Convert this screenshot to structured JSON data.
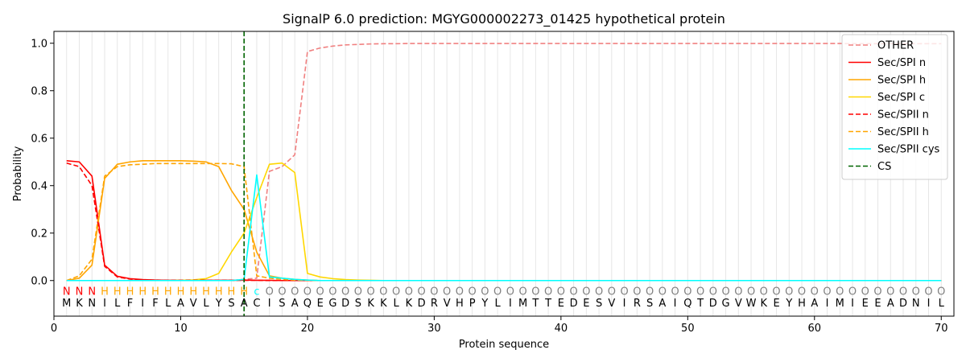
{
  "chart_data": {
    "type": "line",
    "title": "SignalP 6.0 prediction: MGYG000002273_01425 hypothetical protein",
    "xlabel": "Protein sequence",
    "ylabel": "Probability",
    "xlim": [
      0,
      71
    ],
    "ylim": [
      -0.15,
      1.05
    ],
    "xticks": [
      0,
      10,
      20,
      30,
      40,
      50,
      60,
      70
    ],
    "yticks": [
      0.0,
      0.2,
      0.4,
      0.6,
      0.8,
      1.0
    ],
    "ytick_labels": [
      "0.0",
      "0.2",
      "0.4",
      "0.6",
      "0.8",
      "1.0"
    ],
    "grid": "vertical lines at each residue",
    "legend_position": "top-right",
    "sequence": [
      "M",
      "K",
      "N",
      "I",
      "L",
      "F",
      "I",
      "F",
      "L",
      "A",
      "V",
      "L",
      "Y",
      "S",
      "A",
      "C",
      "I",
      "S",
      "A",
      "Q",
      "E",
      "G",
      "D",
      "S",
      "K",
      "K",
      "L",
      "K",
      "D",
      "R",
      "V",
      "H",
      "P",
      "Y",
      "L",
      "I",
      "M",
      "T",
      "T",
      "E",
      "D",
      "E",
      "S",
      "V",
      "I",
      "R",
      "S",
      "A",
      "I",
      "Q",
      "T",
      "D",
      "G",
      "V",
      "W",
      "K",
      "E",
      "Y",
      "H",
      "A",
      "I",
      "M",
      "I",
      "E",
      "E",
      "A",
      "D",
      "N",
      "I",
      "L"
    ],
    "annotation": [
      "N",
      "N",
      "N",
      "H",
      "H",
      "H",
      "H",
      "H",
      "H",
      "H",
      "H",
      "H",
      "H",
      "H",
      "H",
      "c",
      "O",
      "O",
      "O",
      "O",
      "O",
      "O",
      "O",
      "O",
      "O",
      "O",
      "O",
      "O",
      "O",
      "O",
      "O",
      "O",
      "O",
      "O",
      "O",
      "O",
      "O",
      "O",
      "O",
      "O",
      "O",
      "O",
      "O",
      "O",
      "O",
      "O",
      "O",
      "O",
      "O",
      "O",
      "O",
      "O",
      "O",
      "O",
      "O",
      "O",
      "O",
      "O",
      "O",
      "O",
      "O",
      "O",
      "O",
      "O",
      "O",
      "O",
      "O",
      "O",
      "O",
      "O"
    ],
    "annotation_colors": {
      "N": "#ff0000",
      "H": "#ffa500",
      "c": "#00ffff",
      "O": "#808080"
    },
    "cs_position": 15,
    "series": [
      {
        "name": "OTHER",
        "color": "#f08080",
        "dash": true,
        "values": [
          0.0,
          0.0,
          0.0,
          0.0,
          0.0,
          0.0,
          0.0,
          0.0,
          0.0,
          0.0,
          0.0,
          0.0,
          0.0,
          0.0,
          0.005,
          0.01,
          0.46,
          0.48,
          0.53,
          0.965,
          0.98,
          0.988,
          0.993,
          0.995,
          0.997,
          0.998,
          0.998,
          0.999,
          0.999,
          0.999,
          0.999,
          0.999,
          0.999,
          0.999,
          0.999,
          0.999,
          0.999,
          0.999,
          0.999,
          0.999,
          0.999,
          0.999,
          0.999,
          0.999,
          0.999,
          0.999,
          0.999,
          0.999,
          0.999,
          0.999,
          0.999,
          0.999,
          0.999,
          0.999,
          0.999,
          0.999,
          0.999,
          0.999,
          0.999,
          0.999,
          0.999,
          0.999,
          0.998,
          0.998,
          0.998,
          0.998,
          0.998,
          0.998,
          0.998,
          0.998
        ]
      },
      {
        "name": "Sec/SPI n",
        "color": "#ff0000",
        "dash": false,
        "values": [
          0.505,
          0.5,
          0.44,
          0.065,
          0.018,
          0.008,
          0.004,
          0.002,
          0.001,
          0.001,
          0.001,
          0.001,
          0.001,
          0.001,
          0.002,
          0.001,
          0.001,
          0.0,
          0.0,
          0.0,
          0.0,
          0.0,
          0.0,
          0.0,
          0.0,
          0.0,
          0.0,
          0.0,
          0.0,
          0.0,
          0.0,
          0.0,
          0.0,
          0.0,
          0.0,
          0.0,
          0.0,
          0.0,
          0.0,
          0.0,
          0.0,
          0.0,
          0.0,
          0.0,
          0.0,
          0.0,
          0.0,
          0.0,
          0.0,
          0.0,
          0.0,
          0.0,
          0.0,
          0.0,
          0.0,
          0.0,
          0.0,
          0.0,
          0.0,
          0.0,
          0.0,
          0.0,
          0.0,
          0.0,
          0.0,
          0.0,
          0.0,
          0.0,
          0.0,
          0.0
        ]
      },
      {
        "name": "Sec/SPI h",
        "color": "#ffa500",
        "dash": false,
        "values": [
          0.0,
          0.01,
          0.065,
          0.43,
          0.49,
          0.5,
          0.505,
          0.505,
          0.505,
          0.505,
          0.503,
          0.5,
          0.48,
          0.38,
          0.3,
          0.12,
          0.02,
          0.01,
          0.005,
          0.002,
          0.0,
          0.0,
          0.0,
          0.0,
          0.0,
          0.0,
          0.0,
          0.0,
          0.0,
          0.0,
          0.0,
          0.0,
          0.0,
          0.0,
          0.0,
          0.0,
          0.0,
          0.0,
          0.0,
          0.0,
          0.0,
          0.0,
          0.0,
          0.0,
          0.0,
          0.0,
          0.0,
          0.0,
          0.0,
          0.0,
          0.0,
          0.0,
          0.0,
          0.0,
          0.0,
          0.0,
          0.0,
          0.0,
          0.0,
          0.0,
          0.0,
          0.0,
          0.0,
          0.0,
          0.0,
          0.0,
          0.0,
          0.0,
          0.0,
          0.0
        ]
      },
      {
        "name": "Sec/SPI c",
        "color": "#ffd700",
        "dash": false,
        "values": [
          0.0,
          0.0,
          0.0,
          0.0,
          0.0,
          0.0,
          0.0,
          0.0,
          0.0,
          0.001,
          0.003,
          0.008,
          0.03,
          0.12,
          0.2,
          0.35,
          0.49,
          0.495,
          0.455,
          0.03,
          0.015,
          0.008,
          0.004,
          0.002,
          0.001,
          0.0,
          0.0,
          0.0,
          0.0,
          0.0,
          0.0,
          0.0,
          0.0,
          0.0,
          0.0,
          0.0,
          0.0,
          0.0,
          0.0,
          0.0,
          0.0,
          0.0,
          0.0,
          0.0,
          0.0,
          0.0,
          0.0,
          0.0,
          0.0,
          0.0,
          0.0,
          0.0,
          0.0,
          0.0,
          0.0,
          0.0,
          0.0,
          0.0,
          0.0,
          0.0,
          0.0,
          0.0,
          0.0,
          0.0,
          0.0,
          0.0,
          0.0,
          0.0,
          0.0,
          0.0
        ]
      },
      {
        "name": "Sec/SPII n",
        "color": "#ff0000",
        "dash": true,
        "values": [
          0.495,
          0.48,
          0.4,
          0.06,
          0.015,
          0.006,
          0.003,
          0.002,
          0.001,
          0.001,
          0.001,
          0.001,
          0.001,
          0.001,
          0.001,
          0.001,
          0.0,
          0.0,
          0.0,
          0.0,
          0.0,
          0.0,
          0.0,
          0.0,
          0.0,
          0.0,
          0.0,
          0.0,
          0.0,
          0.0,
          0.0,
          0.0,
          0.0,
          0.0,
          0.0,
          0.0,
          0.0,
          0.0,
          0.0,
          0.0,
          0.0,
          0.0,
          0.0,
          0.0,
          0.0,
          0.0,
          0.0,
          0.0,
          0.0,
          0.0,
          0.0,
          0.0,
          0.0,
          0.0,
          0.0,
          0.0,
          0.0,
          0.0,
          0.0,
          0.0,
          0.0,
          0.0,
          0.0,
          0.0,
          0.0,
          0.0,
          0.0,
          0.0,
          0.0,
          0.0
        ]
      },
      {
        "name": "Sec/SPII h",
        "color": "#ffa500",
        "dash": true,
        "values": [
          0.0,
          0.02,
          0.09,
          0.44,
          0.48,
          0.488,
          0.49,
          0.493,
          0.493,
          0.493,
          0.493,
          0.493,
          0.493,
          0.492,
          0.48,
          0.02,
          0.01,
          0.005,
          0.002,
          0.001,
          0.0,
          0.0,
          0.0,
          0.0,
          0.0,
          0.0,
          0.0,
          0.0,
          0.0,
          0.0,
          0.0,
          0.0,
          0.0,
          0.0,
          0.0,
          0.0,
          0.0,
          0.0,
          0.0,
          0.0,
          0.0,
          0.0,
          0.0,
          0.0,
          0.0,
          0.0,
          0.0,
          0.0,
          0.0,
          0.0,
          0.0,
          0.0,
          0.0,
          0.0,
          0.0,
          0.0,
          0.0,
          0.0,
          0.0,
          0.0,
          0.0,
          0.0,
          0.0,
          0.0,
          0.0,
          0.0,
          0.0,
          0.0,
          0.0,
          0.0
        ]
      },
      {
        "name": "Sec/SPII cys",
        "color": "#00ffff",
        "dash": false,
        "values": [
          0.0,
          0.0,
          0.0,
          0.0,
          0.0,
          0.0,
          0.0,
          0.0,
          0.0,
          0.0,
          0.0,
          0.0,
          0.0,
          0.0,
          0.005,
          0.445,
          0.015,
          0.01,
          0.005,
          0.002,
          0.0,
          0.0,
          0.0,
          0.0,
          0.0,
          0.0,
          0.0,
          0.0,
          0.0,
          0.0,
          0.0,
          0.0,
          0.0,
          0.0,
          0.0,
          0.0,
          0.0,
          0.0,
          0.0,
          0.0,
          0.0,
          0.0,
          0.0,
          0.0,
          0.0,
          0.0,
          0.0,
          0.0,
          0.0,
          0.0,
          0.0,
          0.0,
          0.0,
          0.0,
          0.0,
          0.0,
          0.0,
          0.0,
          0.0,
          0.0,
          0.0,
          0.0,
          0.0,
          0.0,
          0.0,
          0.0,
          0.0,
          0.0,
          0.0,
          0.0
        ]
      },
      {
        "name": "CS",
        "color": "#006400",
        "dash": true,
        "values": []
      }
    ]
  }
}
